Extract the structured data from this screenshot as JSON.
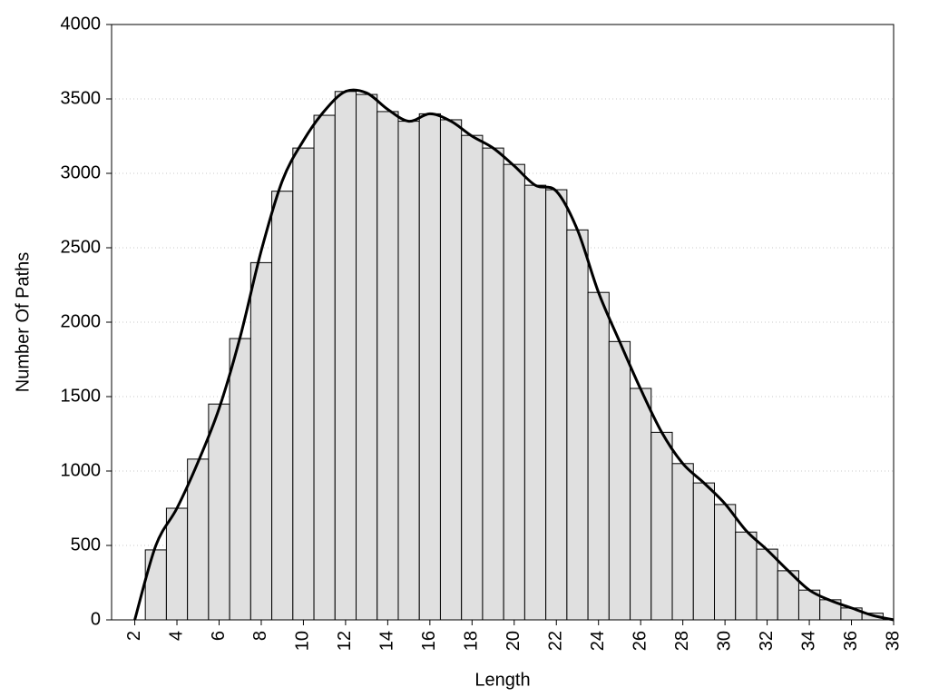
{
  "chart_data": {
    "type": "histogram",
    "xlabel": "Length",
    "ylabel": "Number Of Paths",
    "bins": [
      2.5,
      3.5,
      4.5,
      5.5,
      6.5,
      7.5,
      8.5,
      9.5,
      10.5,
      11.5,
      12.5,
      13.5,
      14.5,
      15.5,
      16.5,
      17.5,
      18.5,
      19.5,
      20.5,
      21.5,
      22.5,
      23.5,
      24.5,
      25.5,
      26.5,
      27.5,
      28.5,
      29.5,
      30.5,
      31.5,
      32.5,
      33.5,
      34.5,
      35.5,
      36.5,
      37.5
    ],
    "values": [
      470,
      750,
      1080,
      1450,
      1890,
      2400,
      2880,
      3170,
      3390,
      3550,
      3530,
      3415,
      3350,
      3400,
      3360,
      3255,
      3170,
      3060,
      2920,
      2890,
      2620,
      2200,
      1870,
      1555,
      1260,
      1050,
      920,
      775,
      590,
      475,
      330,
      200,
      135,
      80,
      45
    ],
    "color": "#e0e0e0",
    "line": {
      "color": "#000000",
      "x": [
        2,
        3,
        4,
        5,
        6,
        7,
        8,
        9,
        10,
        11,
        12,
        13,
        14,
        15,
        16,
        17,
        18,
        19,
        20,
        21,
        22,
        23,
        24,
        25,
        26,
        27,
        28,
        29,
        30,
        31,
        32,
        33,
        34,
        35,
        36,
        37,
        38
      ],
      "values": [
        0,
        500,
        750,
        1060,
        1420,
        1900,
        2480,
        2950,
        3220,
        3420,
        3550,
        3540,
        3430,
        3350,
        3400,
        3350,
        3250,
        3170,
        3050,
        2920,
        2880,
        2620,
        2200,
        1870,
        1550,
        1260,
        1050,
        920,
        780,
        600,
        470,
        330,
        200,
        130,
        80,
        30,
        0
      ]
    },
    "xlim": [
      0.9,
      38
    ],
    "ylim": [
      0,
      4000
    ],
    "xticks": [
      2,
      4,
      6,
      8,
      10,
      12,
      14,
      16,
      18,
      20,
      22,
      24,
      26,
      28,
      30,
      32,
      34,
      36,
      38
    ],
    "yticks": [
      0,
      500,
      1000,
      1500,
      2000,
      2500,
      3000,
      3500,
      4000
    ],
    "grid": true
  }
}
